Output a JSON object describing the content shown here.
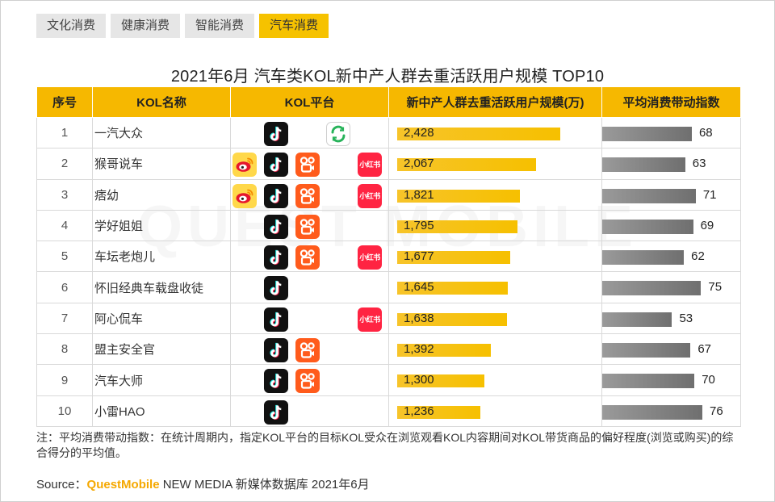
{
  "tabs": [
    {
      "label": "文化消费",
      "active": false
    },
    {
      "label": "健康消费",
      "active": false
    },
    {
      "label": "智能消费",
      "active": false
    },
    {
      "label": "汽车消费",
      "active": true
    }
  ],
  "watermark": "QUEST MOBILE",
  "colors": {
    "accent": "#f6b800",
    "bar_users": "#f6c000",
    "bar_index": "#7a7a7a"
  },
  "chart_data": {
    "type": "table",
    "title": "2021年6月 汽车类KOL新中产人群去重活跃用户规模 TOP10",
    "headers": [
      "序号",
      "KOL名称",
      "KOL平台",
      "新中产人群去重活跃用户规模(万)",
      "平均消费带动指数"
    ],
    "rows": [
      {
        "rank": "1",
        "name": "一汽大众",
        "platforms": [
          "douyin",
          "huya"
        ],
        "users": 2428,
        "users_label": "2,428",
        "index": 68
      },
      {
        "rank": "2",
        "name": "猴哥说车",
        "platforms": [
          "weibo",
          "douyin",
          "kuaishou",
          "xiaohongshu"
        ],
        "users": 2067,
        "users_label": "2,067",
        "index": 63
      },
      {
        "rank": "3",
        "name": "痞幼",
        "platforms": [
          "weibo",
          "douyin",
          "kuaishou",
          "xiaohongshu"
        ],
        "users": 1821,
        "users_label": "1,821",
        "index": 71
      },
      {
        "rank": "4",
        "name": "学好姐姐",
        "platforms": [
          "douyin",
          "kuaishou"
        ],
        "users": 1795,
        "users_label": "1,795",
        "index": 69
      },
      {
        "rank": "5",
        "name": "车坛老炮儿",
        "platforms": [
          "douyin",
          "kuaishou",
          "xiaohongshu"
        ],
        "users": 1677,
        "users_label": "1,677",
        "index": 62
      },
      {
        "rank": "6",
        "name": "怀旧经典车载盘收徒",
        "platforms": [
          "douyin"
        ],
        "users": 1645,
        "users_label": "1,645",
        "index": 75
      },
      {
        "rank": "7",
        "name": "阿心侃车",
        "platforms": [
          "douyin",
          "xiaohongshu"
        ],
        "users": 1638,
        "users_label": "1,638",
        "index": 53
      },
      {
        "rank": "8",
        "name": "盟主安全官",
        "platforms": [
          "douyin",
          "kuaishou"
        ],
        "users": 1392,
        "users_label": "1,392",
        "index": 67
      },
      {
        "rank": "9",
        "name": "汽车大师",
        "platforms": [
          "douyin",
          "kuaishou"
        ],
        "users": 1300,
        "users_label": "1,300",
        "index": 70
      },
      {
        "rank": "10",
        "name": "小雷HAO",
        "platforms": [
          "douyin"
        ],
        "users": 1236,
        "users_label": "1,236",
        "index": 76
      }
    ],
    "users_max": 2428,
    "index_max": 76
  },
  "xhs_label": "小红书",
  "note": "注：平均消费带动指数：在统计周期内，指定KOL平台的目标KOL受众在浏览观看KOL内容期间对KOL带货商品的偏好程度(浏览或购买)的综合得分的平均值。",
  "source": {
    "prefix": "Source：",
    "brand": "QuestMobile",
    "suffix": " NEW MEDIA 新媒体数据库 2021年6月"
  }
}
